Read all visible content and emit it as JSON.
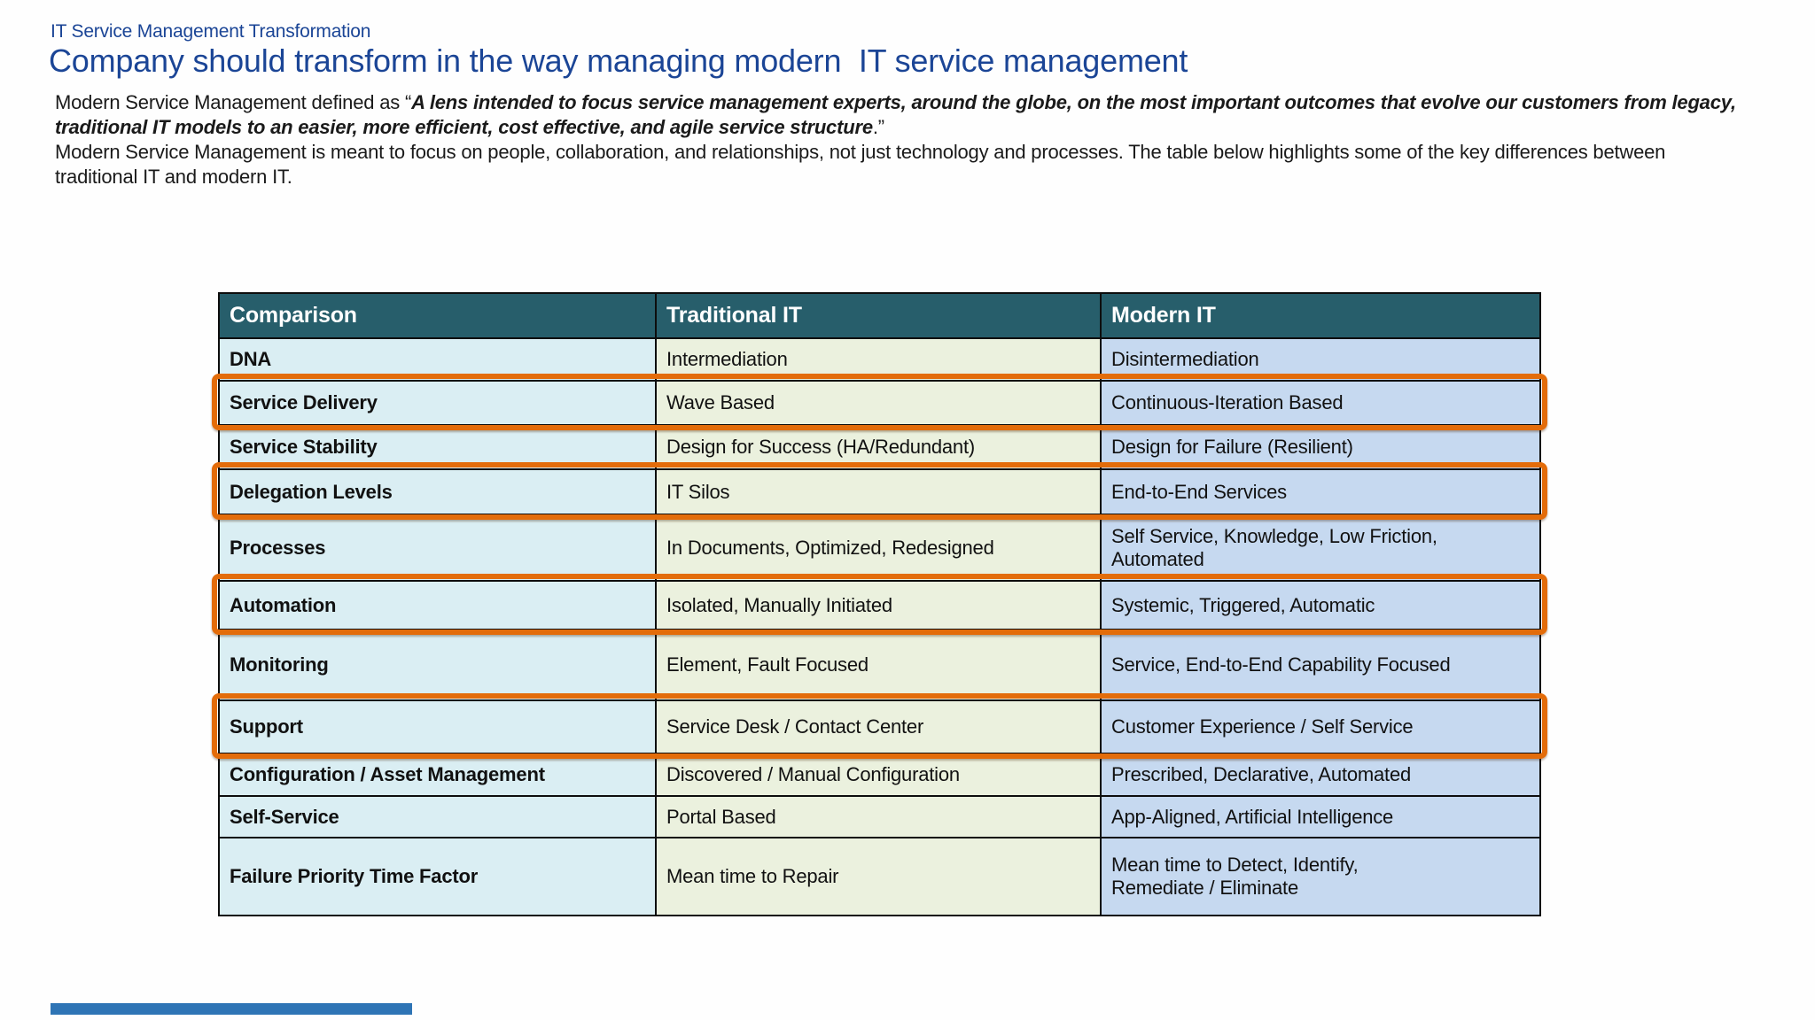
{
  "slide": {
    "kicker": "IT Service Management Transformation",
    "title": "Company should transform in the way managing modern  IT service management",
    "intro": {
      "lead": "Modern Service Management defined as “",
      "quote": "A lens intended to focus service management experts, around the globe, on the most important outcomes that evolve our customers from legacy, traditional IT models to an easier, more efficient, cost effective, and agile service structure",
      "quote_close": ".”",
      "body": "Modern Service Management is meant to focus on people, collaboration, and relationships, not just technology and processes. The table below highlights some of the key differences between traditional IT and modern IT."
    }
  },
  "table": {
    "headers": [
      "Comparison",
      "Traditional IT",
      "Modern IT"
    ],
    "rows": [
      {
        "comparison": "DNA",
        "traditional": "Intermediation",
        "modern": "Disintermediation",
        "highlighted": false
      },
      {
        "comparison": "Service Delivery",
        "traditional": "Wave Based",
        "modern": "Continuous-Iteration Based",
        "highlighted": true
      },
      {
        "comparison": "Service Stability",
        "traditional": "Design for Success (HA/Redundant)",
        "modern": "Design for Failure (Resilient)",
        "highlighted": false
      },
      {
        "comparison": "Delegation Levels",
        "traditional": "IT Silos",
        "modern": "End-to-End Services",
        "highlighted": true
      },
      {
        "comparison": "Processes",
        "traditional": "In Documents, Optimized, Redesigned",
        "modern": "Self Service, Knowledge, Low Friction,\nAutomated",
        "highlighted": false
      },
      {
        "comparison": "Automation",
        "traditional": "Isolated, Manually Initiated",
        "modern": "Systemic, Triggered, Automatic",
        "highlighted": true
      },
      {
        "comparison": "Monitoring",
        "traditional": "Element, Fault Focused",
        "modern": "Service, End-to-End Capability Focused",
        "highlighted": false
      },
      {
        "comparison": "Support",
        "traditional": "Service Desk / Contact Center",
        "modern": "Customer Experience / Self Service",
        "highlighted": true
      },
      {
        "comparison": "Configuration / Asset Management",
        "traditional": "Discovered / Manual Configuration",
        "modern": "Prescribed, Declarative, Automated",
        "highlighted": false
      },
      {
        "comparison": "Self-Service",
        "traditional": "Portal Based",
        "modern": "App-Aligned, Artificial Intelligence",
        "highlighted": false
      },
      {
        "comparison": "Failure Priority Time Factor",
        "traditional": "Mean time to Repair",
        "modern": "Mean time to Detect, Identify,\nRemediate / Eliminate",
        "highlighted": false
      }
    ]
  },
  "colors": {
    "title_blue": "#1B4596",
    "header_bg": "#275E6B",
    "col_comparison": "#DAEEF3",
    "col_traditional": "#EBF1DE",
    "col_modern": "#C6D9F0",
    "accent_highlight": "#E36C0A",
    "footer_bar": "#2E74B5"
  }
}
